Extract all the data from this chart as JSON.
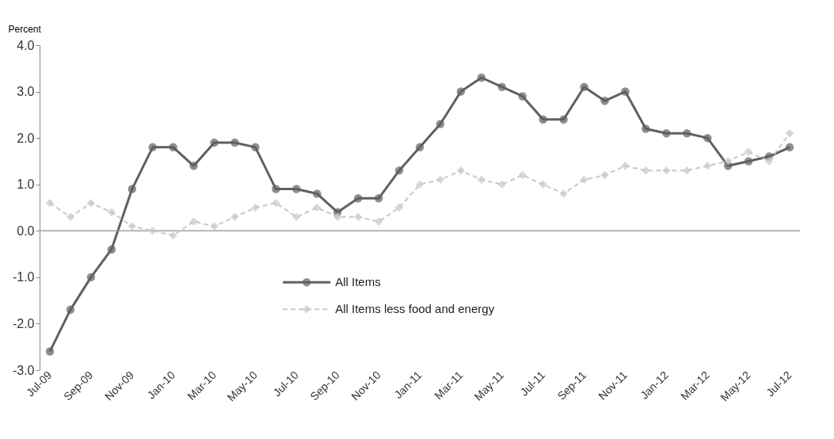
{
  "chart_data": {
    "type": "line",
    "ylabel": "Percent",
    "categories": [
      "Jul-09",
      null,
      "Sep-09",
      null,
      "Nov-09",
      null,
      "Jan-10",
      null,
      "Mar-10",
      null,
      "May-10",
      null,
      "Jul-10",
      null,
      "Sep-10",
      null,
      "Nov-10",
      null,
      "Jan-11",
      null,
      "Mar-11",
      null,
      "May-11",
      null,
      "Jul-11",
      null,
      "Sep-11",
      null,
      "Nov-11",
      null,
      "Jan-12",
      null,
      "Mar-12",
      null,
      "May-12",
      null,
      "Jul-12"
    ],
    "series": [
      {
        "name": "All Items",
        "color": "#606060",
        "marker": "circle",
        "line_style": "solid",
        "values": [
          -2.6,
          -1.7,
          -1.0,
          -0.4,
          0.9,
          1.8,
          1.8,
          1.4,
          1.9,
          1.9,
          1.8,
          0.9,
          0.9,
          0.8,
          0.4,
          0.7,
          0.7,
          1.3,
          1.8,
          2.3,
          3.0,
          3.3,
          3.1,
          2.9,
          2.4,
          2.4,
          3.1,
          2.8,
          3.0,
          2.2,
          2.1,
          2.1,
          2.0,
          1.4,
          1.5,
          1.6,
          1.8
        ]
      },
      {
        "name": "All Items less food and energy",
        "color": "#c8c8c8",
        "marker": "diamond",
        "line_style": "dashed",
        "values": [
          0.6,
          0.3,
          0.6,
          0.4,
          0.1,
          0.0,
          -0.1,
          0.2,
          0.1,
          0.3,
          0.5,
          0.6,
          0.3,
          0.5,
          0.3,
          0.3,
          0.2,
          0.5,
          1.0,
          1.1,
          1.3,
          1.1,
          1.0,
          1.2,
          1.0,
          0.8,
          1.1,
          1.2,
          1.4,
          1.3,
          1.3,
          1.3,
          1.4,
          1.5,
          1.7,
          1.5,
          2.1
        ]
      }
    ],
    "ylim": [
      -3,
      4
    ],
    "yticks": [
      {
        "value": -3,
        "label": "-3.0"
      },
      {
        "value": -2,
        "label": "-2.0"
      },
      {
        "value": -1,
        "label": "-1.0"
      },
      {
        "value": 0,
        "label": "0.0"
      },
      {
        "value": 1,
        "label": "1.0"
      },
      {
        "value": 2,
        "label": "2.0"
      },
      {
        "value": 3,
        "label": "3.0"
      },
      {
        "value": 4,
        "label": "4.0"
      }
    ],
    "ref_lines": [
      {
        "axis": "y",
        "value": 0,
        "color": "#a0a0a0"
      }
    ],
    "grid": false,
    "legend": "bottom"
  }
}
